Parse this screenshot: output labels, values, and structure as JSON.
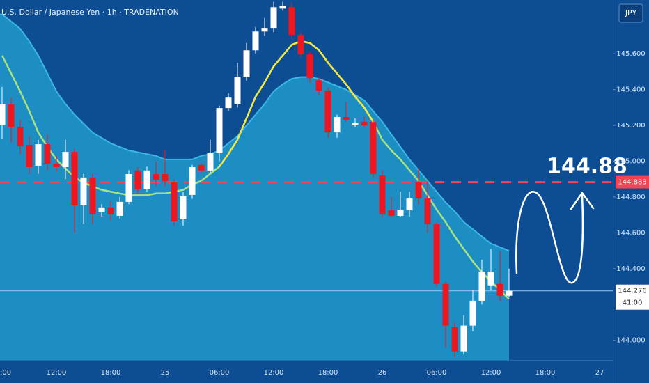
{
  "chart_data": {
    "type": "candlestick",
    "title": "U.S. Dollar / Japanese Yen · 1h · TRADENATION",
    "currency_button": "JPY",
    "annotation": "144.88",
    "up_color": "#ffffff",
    "down_color": "#f01620",
    "open": [
      145.2,
      145.317,
      145.192,
      145.091,
      144.975,
      145.095,
      144.986,
      144.967,
      145.052,
      144.753,
      144.909,
      144.715,
      144.742,
      144.695,
      144.773,
      144.948,
      144.843,
      144.928,
      144.928,
      144.882,
      144.676,
      144.812,
      144.979,
      144.948,
      145.045,
      145.297,
      145.317,
      145.472,
      145.619,
      145.724,
      145.744,
      145.852,
      145.86,
      145.705,
      145.596,
      145.452,
      145.394,
      145.161,
      145.247,
      145.204,
      145.219,
      145.219,
      144.92,
      144.726,
      144.695,
      144.726,
      144.882,
      144.792,
      144.649,
      144.315,
      144.074,
      143.938,
      144.082,
      144.221,
      144.307,
      144.315,
      144.249
    ],
    "high": [
      145.414,
      145.355,
      145.23,
      145.14,
      145.12,
      145.15,
      145.03,
      145.12,
      145.07,
      144.93,
      144.93,
      144.76,
      144.78,
      144.8,
      144.95,
      144.97,
      144.97,
      145.0,
      145.06,
      144.9,
      144.83,
      144.98,
      144.99,
      145.12,
      145.31,
      145.38,
      145.55,
      145.66,
      145.75,
      145.8,
      145.89,
      145.89,
      145.89,
      145.72,
      145.61,
      145.47,
      145.41,
      145.26,
      145.33,
      145.24,
      145.25,
      145.23,
      144.95,
      144.8,
      144.83,
      144.83,
      144.96,
      144.89,
      144.66,
      144.33,
      144.1,
      144.14,
      144.28,
      144.45,
      144.51,
      144.5,
      144.4
    ],
    "low": [
      145.122,
      145.103,
      145.04,
      144.93,
      144.93,
      144.95,
      144.94,
      144.9,
      144.6,
      144.65,
      144.65,
      144.69,
      144.67,
      144.68,
      144.76,
      144.82,
      144.83,
      144.86,
      144.86,
      144.64,
      144.64,
      144.79,
      144.93,
      144.93,
      145.0,
      145.28,
      145.3,
      145.45,
      145.6,
      145.7,
      145.72,
      145.84,
      145.68,
      145.58,
      145.44,
      145.37,
      145.13,
      145.13,
      145.22,
      145.19,
      145.19,
      144.91,
      144.69,
      144.69,
      144.69,
      144.69,
      144.76,
      144.6,
      144.3,
      143.96,
      143.91,
      143.92,
      144.05,
      144.2,
      144.28,
      144.22,
      144.24
    ],
    "close": [
      145.317,
      145.192,
      145.083,
      144.967,
      145.095,
      144.986,
      144.967,
      145.052,
      144.753,
      144.909,
      144.703,
      144.742,
      144.703,
      144.773,
      144.928,
      144.843,
      144.948,
      144.897,
      144.889,
      144.664,
      144.804,
      144.967,
      144.948,
      145.045,
      145.297,
      145.355,
      145.472,
      145.619,
      145.724,
      145.744,
      145.86,
      145.868,
      145.705,
      145.596,
      145.464,
      145.394,
      145.161,
      145.247,
      145.231,
      145.212,
      145.2,
      144.928,
      144.703,
      144.695,
      144.726,
      144.792,
      144.792,
      144.649,
      144.315,
      144.082,
      143.938,
      144.082,
      144.221,
      144.384,
      144.384,
      144.249,
      144.276
    ],
    "band": {
      "color": "#3cb8e6",
      "fill": "#1c8ec4",
      "values": [
        145.82,
        145.78,
        145.74,
        145.67,
        145.59,
        145.49,
        145.39,
        145.32,
        145.26,
        145.21,
        145.16,
        145.13,
        145.1,
        145.08,
        145.06,
        145.05,
        145.04,
        145.03,
        145.01,
        145.01,
        145.01,
        145.01,
        145.03,
        145.04,
        145.06,
        145.1,
        145.14,
        145.2,
        145.26,
        145.32,
        145.39,
        145.43,
        145.46,
        145.47,
        145.47,
        145.46,
        145.44,
        145.42,
        145.4,
        145.37,
        145.34,
        145.28,
        145.22,
        145.15,
        145.08,
        145.01,
        144.95,
        144.89,
        144.83,
        144.77,
        144.72,
        144.66,
        144.62,
        144.58,
        144.54,
        144.52,
        144.5
      ]
    },
    "series": [
      {
        "color": "#a9e37e",
        "values": [
          145.59,
          145.49,
          145.39,
          145.28,
          145.16,
          145.08,
          145.01,
          144.96,
          144.91,
          144.88,
          144.86,
          144.84,
          144.83,
          144.82,
          144.81,
          144.81,
          144.81,
          144.82,
          144.82,
          144.83,
          144.84,
          144.87,
          144.89,
          144.93,
          144.97,
          145.04,
          145.12,
          145.24,
          145.36,
          145.44,
          145.53,
          145.59,
          145.65,
          145.67,
          145.66,
          145.62,
          145.55,
          145.49,
          145.43,
          145.36,
          145.3,
          145.22,
          145.12,
          145.06,
          145.01,
          144.95,
          144.89,
          144.81,
          144.73,
          144.66,
          144.58,
          144.51,
          144.44,
          144.38,
          144.33,
          144.28,
          144.23
        ]
      },
      {
        "color": "#f3e641",
        "values": [
          null,
          null,
          null,
          null,
          null,
          null,
          null,
          null,
          null,
          null,
          null,
          null,
          null,
          null,
          null,
          null,
          null,
          null,
          null,
          null,
          null,
          null,
          null,
          null,
          144.97,
          145.04,
          145.12,
          145.24,
          145.36,
          145.44,
          145.53,
          145.59,
          145.65,
          145.67,
          145.66,
          145.62,
          145.55,
          145.49,
          145.43,
          145.36,
          145.3,
          145.22,
          null,
          null,
          null,
          null,
          null,
          null,
          null,
          null,
          null,
          null,
          null,
          null,
          null,
          null,
          null
        ]
      }
    ],
    "price_line": {
      "value": 144.883,
      "label": "144.883",
      "color": "#f2454f"
    },
    "current_price": {
      "value": 144.276,
      "label": "144.276",
      "countdown": "41:00"
    },
    "ylim": [
      143.89,
      145.9
    ],
    "yticks": [
      {
        "value": 145.6,
        "label": "145.600"
      },
      {
        "value": 145.4,
        "label": "145.400"
      },
      {
        "value": 145.2,
        "label": "145.200"
      },
      {
        "value": 145.0,
        "label": "145.000"
      },
      {
        "value": 144.8,
        "label": "144.800"
      },
      {
        "value": 144.6,
        "label": "144.600"
      },
      {
        "value": 144.4,
        "label": "144.400"
      },
      {
        "value": 144.0,
        "label": "144.000"
      }
    ],
    "xticks": [
      ":00",
      "12:00",
      "18:00",
      "25",
      "06:00",
      "12:00",
      "18:00",
      "26",
      "06:00",
      "12:00",
      "18:00",
      "27"
    ]
  }
}
